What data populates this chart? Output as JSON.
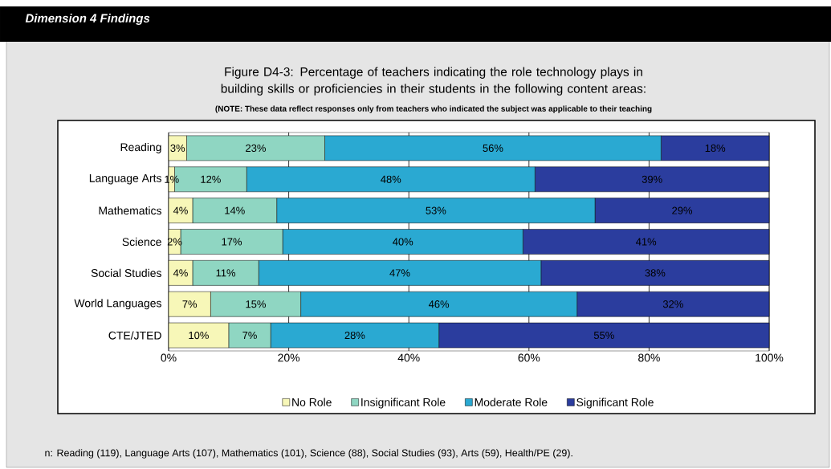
{
  "chart_data": {
    "type": "bar",
    "orientation": "horizontal",
    "stacked": true,
    "title": "Dimension 4 Findings",
    "subtitle": "Figure D4-3: Percentage of teachers indicating the role technology plays in building skills or proficiencies in their students in the following content areas:",
    "annotations": [
      "(NOTE: These data reflect responses only from teachers who indicated the subject was applicable to their teaching",
      "n: Reading (119), Language Arts (107), Mathematics (101), Science (88), Social Studies (93), Arts (59), Health/PE (29)."
    ],
    "categories": [
      "Reading",
      "Language Arts",
      "Mathematics",
      "Science",
      "Social Studies",
      "World Languages",
      "CTE/JTED"
    ],
    "series": [
      {
        "name": "No Role",
        "color": "#f7f7b8",
        "values": [
          3,
          1,
          4,
          2,
          4,
          7,
          10
        ],
        "value_labels": [
          "3%",
          "1%",
          "4%",
          "2%",
          "4%",
          "7%",
          "10%"
        ]
      },
      {
        "name": "Insignificant Role",
        "color": "#8fd6c2",
        "values": [
          23,
          12,
          14,
          17,
          11,
          15,
          7
        ],
        "value_labels": [
          "23%",
          "12%",
          "14%",
          "17%",
          "11%",
          "15%",
          "7%"
        ]
      },
      {
        "name": "Moderate Role",
        "color": "#2aa9d2",
        "values": [
          56,
          48,
          53,
          40,
          47,
          46,
          28
        ],
        "value_labels": [
          "56%",
          "48%",
          "53%",
          "40%",
          "47%",
          "46%",
          "28%"
        ]
      },
      {
        "name": "Significant Role",
        "color": "#2b3d9e",
        "values": [
          18,
          39,
          29,
          41,
          38,
          32,
          55
        ],
        "value_labels": [
          "18%",
          "39%",
          "29%",
          "41%",
          "38%",
          "32%",
          "55%"
        ]
      }
    ],
    "xlim": [
      0,
      100
    ],
    "xticks": [
      {
        "value": 0,
        "label": "0%"
      },
      {
        "value": 20,
        "label": "20%"
      },
      {
        "value": 40,
        "label": "40%"
      },
      {
        "value": 60,
        "label": "60%"
      },
      {
        "value": 80,
        "label": "80%"
      },
      {
        "value": 100,
        "label": "100%"
      }
    ],
    "grid": "x",
    "legend": "bottom"
  }
}
